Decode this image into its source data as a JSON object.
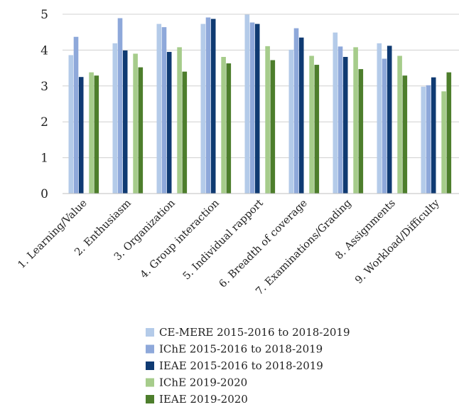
{
  "chart_data": {
    "type": "bar",
    "title": "",
    "xlabel": "",
    "ylabel": "",
    "ylim": [
      0,
      5
    ],
    "yticks": [
      0,
      1,
      2,
      3,
      4,
      5
    ],
    "grid": true,
    "legend_position": "bottom",
    "categories": [
      "1. Learning/Value",
      "2. Enthusiasm",
      "3. Organization",
      "4. Group interaction",
      "5. Individual rapport",
      "6. Breadth of coverage",
      "7. Examinations/Grading",
      "8. Assignments",
      "9. Workload/Difficulty"
    ],
    "series": [
      {
        "name": "CE-MERE 2015-2016 to 2018-2019",
        "color": "#b4cbe9",
        "values": [
          3.86,
          4.19,
          4.73,
          4.73,
          4.99,
          4.01,
          4.49,
          4.19,
          2.98
        ]
      },
      {
        "name": "IChE 2015-2016 to 2018-2019",
        "color": "#8ea8da",
        "values": [
          4.37,
          4.89,
          4.64,
          4.91,
          4.77,
          4.61,
          4.1,
          3.76,
          3.02
        ]
      },
      {
        "name": "IEAE 2015-2016 to 2018-2019",
        "color": "#0f3a72",
        "values": [
          3.25,
          3.99,
          3.95,
          4.87,
          4.73,
          4.35,
          3.81,
          4.12,
          3.24
        ]
      },
      {
        "name": "IChE 2019-2020",
        "color": "#a6cc8b",
        "values": [
          3.38,
          3.9,
          4.08,
          3.81,
          4.11,
          3.84,
          4.08,
          3.84,
          2.85
        ]
      },
      {
        "name": "IEAE 2019-2020",
        "color": "#4d7e2c",
        "values": [
          3.29,
          3.52,
          3.4,
          3.63,
          3.72,
          3.59,
          3.47,
          3.29,
          3.38
        ]
      }
    ]
  }
}
